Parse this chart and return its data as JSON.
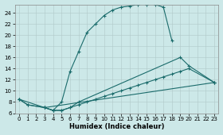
{
  "xlabel": "Humidex (Indice chaleur)",
  "bg_color": "#cce8e8",
  "line_color": "#1a6b6b",
  "xlim": [
    -0.5,
    23.5
  ],
  "ylim": [
    6,
    25.5
  ],
  "xticks": [
    0,
    1,
    2,
    3,
    4,
    5,
    6,
    7,
    8,
    9,
    10,
    11,
    12,
    13,
    14,
    15,
    16,
    17,
    18,
    19,
    20,
    21,
    22,
    23
  ],
  "yticks": [
    6,
    8,
    10,
    12,
    14,
    16,
    18,
    20,
    22,
    24
  ],
  "series1": {
    "x": [
      0,
      1,
      3,
      4,
      5,
      6,
      7,
      8,
      9,
      10,
      11,
      12,
      13,
      14,
      15,
      16,
      17,
      18
    ],
    "y": [
      8.5,
      7.5,
      7.0,
      6.5,
      8.0,
      13.5,
      17.0,
      20.5,
      22.0,
      23.5,
      24.5,
      25.0,
      25.2,
      25.5,
      25.5,
      25.5,
      25.0,
      19.0
    ]
  },
  "series2": {
    "x": [
      0,
      1,
      3,
      4,
      5,
      6,
      7,
      19,
      20,
      23
    ],
    "y": [
      8.5,
      7.5,
      7.0,
      6.5,
      6.5,
      7.0,
      8.0,
      16.0,
      14.5,
      11.5
    ]
  },
  "series3": {
    "x": [
      0,
      3,
      23
    ],
    "y": [
      8.5,
      7.0,
      11.5
    ]
  },
  "series4": {
    "x": [
      3,
      4,
      5,
      6,
      7,
      8,
      9,
      10,
      11,
      12,
      13,
      14,
      15,
      16,
      17,
      18,
      19,
      20,
      23
    ],
    "y": [
      7.0,
      6.5,
      6.5,
      7.0,
      7.5,
      8.0,
      8.5,
      9.0,
      9.5,
      10.0,
      10.5,
      11.0,
      11.5,
      12.0,
      12.5,
      13.0,
      13.5,
      14.0,
      11.5
    ]
  }
}
